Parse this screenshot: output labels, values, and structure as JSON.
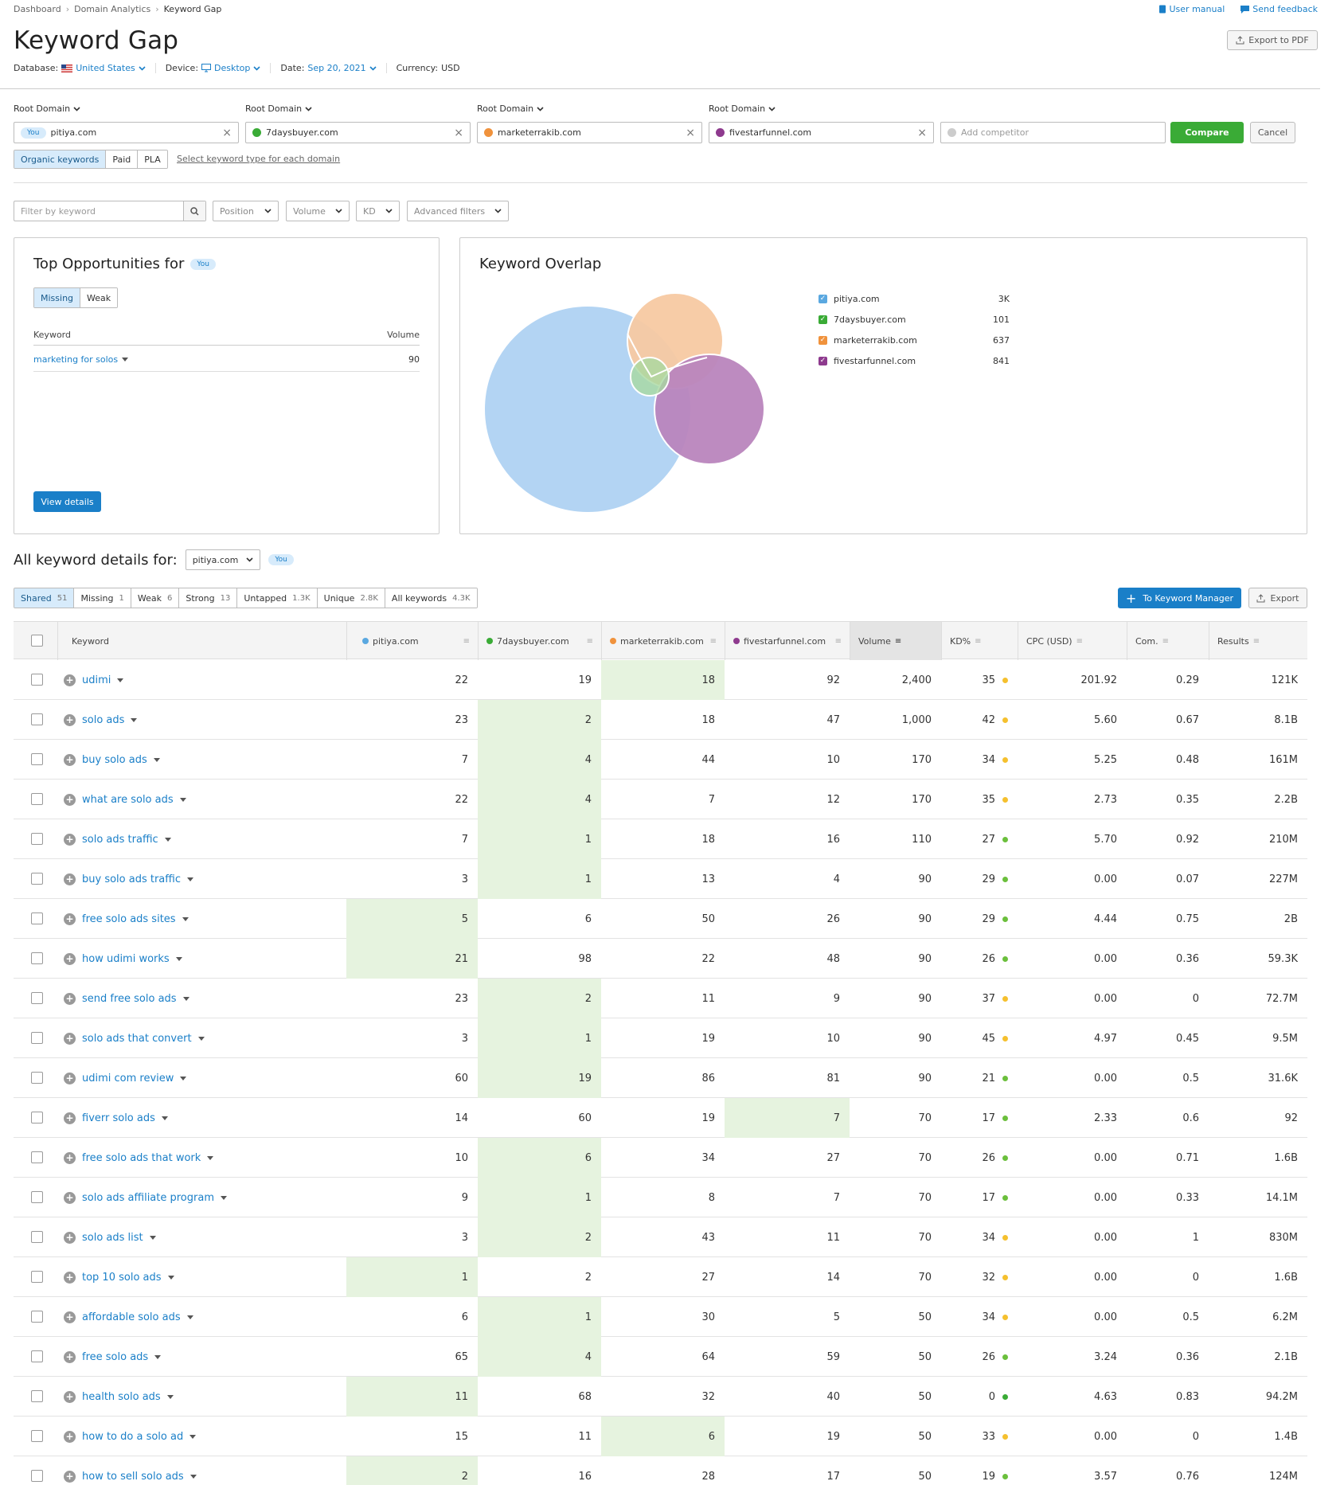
{
  "breadcrumbs": [
    "Dashboard",
    "Domain Analytics",
    "Keyword Gap"
  ],
  "top_links": {
    "manual": "User manual",
    "feedback": "Send feedback"
  },
  "page_title": "Keyword Gap",
  "export_pdf": "Export to PDF",
  "meta": {
    "database_label": "Database:",
    "database": "United States",
    "device_label": "Device:",
    "device": "Desktop",
    "date_label": "Date:",
    "date": "Sep 20, 2021",
    "currency_label": "Currency:",
    "currency": "USD"
  },
  "root_domain_label": "Root Domain",
  "domains": [
    {
      "name": "pitiya.com",
      "you": "You",
      "color": "#5aa8e0"
    },
    {
      "name": "7daysbuyer.com",
      "color": "#3aab36"
    },
    {
      "name": "marketerrakib.com",
      "color": "#f0923c"
    },
    {
      "name": "fivestarfunnel.com",
      "color": "#8e3a8e"
    }
  ],
  "add_competitor": "Add competitor",
  "compare": "Compare",
  "cancel": "Cancel",
  "keyword_types": [
    "Organic keywords",
    "Paid",
    "PLA"
  ],
  "keyword_type_hint": "Select keyword type for each domain",
  "filters": {
    "search_placeholder": "Filter by keyword",
    "position": "Position",
    "volume": "Volume",
    "kd": "KD",
    "advanced": "Advanced filters"
  },
  "opportunities": {
    "title": "Top Opportunities for",
    "you": "You",
    "tabs": [
      "Missing",
      "Weak"
    ],
    "col_keyword": "Keyword",
    "col_volume": "Volume",
    "rows": [
      {
        "keyword": "marketing for solos",
        "volume": "90"
      }
    ],
    "view_details": "View details"
  },
  "overlap": {
    "title": "Keyword Overlap",
    "legend": [
      {
        "name": "pitiya.com",
        "value": "3K",
        "color": "#5aa8e0"
      },
      {
        "name": "7daysbuyer.com",
        "value": "101",
        "color": "#3aab36"
      },
      {
        "name": "marketerrakib.com",
        "value": "637",
        "color": "#f0923c"
      },
      {
        "name": "fivestarfunnel.com",
        "value": "841",
        "color": "#8e3a8e"
      }
    ]
  },
  "details": {
    "label": "All keyword details for:",
    "domain": "pitiya.com",
    "you": "You",
    "tabs": [
      {
        "label": "Shared",
        "count": "51"
      },
      {
        "label": "Missing",
        "count": "1"
      },
      {
        "label": "Weak",
        "count": "6"
      },
      {
        "label": "Strong",
        "count": "13"
      },
      {
        "label": "Untapped",
        "count": "1.3K"
      },
      {
        "label": "Unique",
        "count": "2.8K"
      },
      {
        "label": "All keywords",
        "count": "4.3K"
      }
    ],
    "to_manager": "To Keyword Manager",
    "export": "Export"
  },
  "table": {
    "headers": {
      "keyword": "Keyword",
      "d1": "pitiya.com",
      "d2": "7daysbuyer.com",
      "d3": "marketerrakib.com",
      "d4": "fivestarfunnel.com",
      "volume": "Volume",
      "kd": "KD%",
      "cpc": "CPC (USD)",
      "com": "Com.",
      "results": "Results"
    },
    "rows": [
      {
        "kw": "udimi",
        "p": [
          "22",
          "19",
          "18",
          "92"
        ],
        "best": 2,
        "vol": "2,400",
        "kd": "35",
        "kdc": "#f5c02e",
        "cpc": "201.92",
        "com": "0.29",
        "res": "121K"
      },
      {
        "kw": "solo ads",
        "p": [
          "23",
          "2",
          "18",
          "47"
        ],
        "best": 1,
        "vol": "1,000",
        "kd": "42",
        "kdc": "#f5c02e",
        "cpc": "5.60",
        "com": "0.67",
        "res": "8.1B"
      },
      {
        "kw": "buy solo ads",
        "p": [
          "7",
          "4",
          "44",
          "10"
        ],
        "best": 1,
        "vol": "170",
        "kd": "34",
        "kdc": "#f5c02e",
        "cpc": "5.25",
        "com": "0.48",
        "res": "161M"
      },
      {
        "kw": "what are solo ads",
        "p": [
          "22",
          "4",
          "7",
          "12"
        ],
        "best": 1,
        "vol": "170",
        "kd": "35",
        "kdc": "#f5c02e",
        "cpc": "2.73",
        "com": "0.35",
        "res": "2.2B"
      },
      {
        "kw": "solo ads traffic",
        "p": [
          "7",
          "1",
          "18",
          "16"
        ],
        "best": 1,
        "vol": "110",
        "kd": "27",
        "kdc": "#6bbf3c",
        "cpc": "5.70",
        "com": "0.92",
        "res": "210M"
      },
      {
        "kw": "buy solo ads traffic",
        "p": [
          "3",
          "1",
          "13",
          "4"
        ],
        "best": 1,
        "vol": "90",
        "kd": "29",
        "kdc": "#6bbf3c",
        "cpc": "0.00",
        "com": "0.07",
        "res": "227M"
      },
      {
        "kw": "free solo ads sites",
        "p": [
          "5",
          "6",
          "50",
          "26"
        ],
        "best": 0,
        "vol": "90",
        "kd": "29",
        "kdc": "#6bbf3c",
        "cpc": "4.44",
        "com": "0.75",
        "res": "2B"
      },
      {
        "kw": "how udimi works",
        "p": [
          "21",
          "98",
          "22",
          "48"
        ],
        "best": 0,
        "vol": "90",
        "kd": "26",
        "kdc": "#6bbf3c",
        "cpc": "0.00",
        "com": "0.36",
        "res": "59.3K"
      },
      {
        "kw": "send free solo ads",
        "p": [
          "23",
          "2",
          "11",
          "9"
        ],
        "best": 1,
        "vol": "90",
        "kd": "37",
        "kdc": "#f5c02e",
        "cpc": "0.00",
        "com": "0",
        "res": "72.7M"
      },
      {
        "kw": "solo ads that convert",
        "p": [
          "3",
          "1",
          "19",
          "10"
        ],
        "best": 1,
        "vol": "90",
        "kd": "45",
        "kdc": "#f5c02e",
        "cpc": "4.97",
        "com": "0.45",
        "res": "9.5M"
      },
      {
        "kw": "udimi com review",
        "p": [
          "60",
          "19",
          "86",
          "81"
        ],
        "best": 1,
        "vol": "90",
        "kd": "21",
        "kdc": "#6bbf3c",
        "cpc": "0.00",
        "com": "0.5",
        "res": "31.6K"
      },
      {
        "kw": "fiverr solo ads",
        "p": [
          "14",
          "60",
          "19",
          "7"
        ],
        "best": 3,
        "vol": "70",
        "kd": "17",
        "kdc": "#6bbf3c",
        "cpc": "2.33",
        "com": "0.6",
        "res": "92"
      },
      {
        "kw": "free solo ads that work",
        "p": [
          "10",
          "6",
          "34",
          "27"
        ],
        "best": 1,
        "vol": "70",
        "kd": "26",
        "kdc": "#6bbf3c",
        "cpc": "0.00",
        "com": "0.71",
        "res": "1.6B"
      },
      {
        "kw": "solo ads affiliate program",
        "p": [
          "9",
          "1",
          "8",
          "7"
        ],
        "best": 1,
        "vol": "70",
        "kd": "17",
        "kdc": "#6bbf3c",
        "cpc": "0.00",
        "com": "0.33",
        "res": "14.1M"
      },
      {
        "kw": "solo ads list",
        "p": [
          "3",
          "2",
          "43",
          "11"
        ],
        "best": 1,
        "vol": "70",
        "kd": "34",
        "kdc": "#f5c02e",
        "cpc": "0.00",
        "com": "1",
        "res": "830M"
      },
      {
        "kw": "top 10 solo ads",
        "p": [
          "1",
          "2",
          "27",
          "14"
        ],
        "best": 0,
        "vol": "70",
        "kd": "32",
        "kdc": "#f5c02e",
        "cpc": "0.00",
        "com": "0",
        "res": "1.6B"
      },
      {
        "kw": "affordable solo ads",
        "p": [
          "6",
          "1",
          "30",
          "5"
        ],
        "best": 1,
        "vol": "50",
        "kd": "34",
        "kdc": "#f5c02e",
        "cpc": "0.00",
        "com": "0.5",
        "res": "6.2M"
      },
      {
        "kw": "free solo ads",
        "p": [
          "65",
          "4",
          "64",
          "59"
        ],
        "best": 1,
        "vol": "50",
        "kd": "26",
        "kdc": "#6bbf3c",
        "cpc": "3.24",
        "com": "0.36",
        "res": "2.1B"
      },
      {
        "kw": "health solo ads",
        "p": [
          "11",
          "68",
          "32",
          "40"
        ],
        "best": 0,
        "vol": "50",
        "kd": "0",
        "kdc": "#3aab36",
        "cpc": "4.63",
        "com": "0.83",
        "res": "94.2M"
      },
      {
        "kw": "how to do a solo ad",
        "p": [
          "15",
          "11",
          "6",
          "19"
        ],
        "best": 2,
        "vol": "50",
        "kd": "33",
        "kdc": "#f5c02e",
        "cpc": "0.00",
        "com": "0",
        "res": "1.4B"
      },
      {
        "kw": "how to sell solo ads",
        "p": [
          "2",
          "16",
          "28",
          "17"
        ],
        "best": 0,
        "vol": "50",
        "kd": "19",
        "kdc": "#6bbf3c",
        "cpc": "3.57",
        "com": "0.76",
        "res": "124M"
      }
    ]
  }
}
